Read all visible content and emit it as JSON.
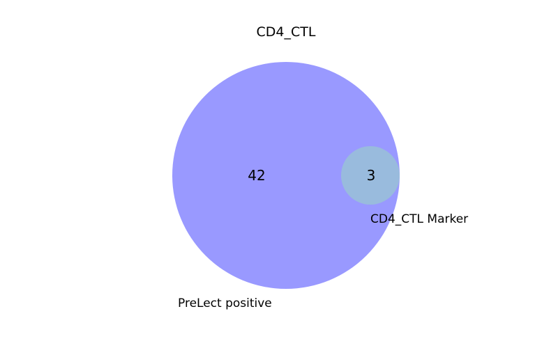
{
  "title": "CD4_CTL",
  "sets": [
    {
      "label": "PreLect positive",
      "only_count": "42",
      "color": "#9999ff"
    },
    {
      "label": "CD4_CTL Marker",
      "color": "#99bbdd"
    }
  ],
  "intersection_count": "3"
}
